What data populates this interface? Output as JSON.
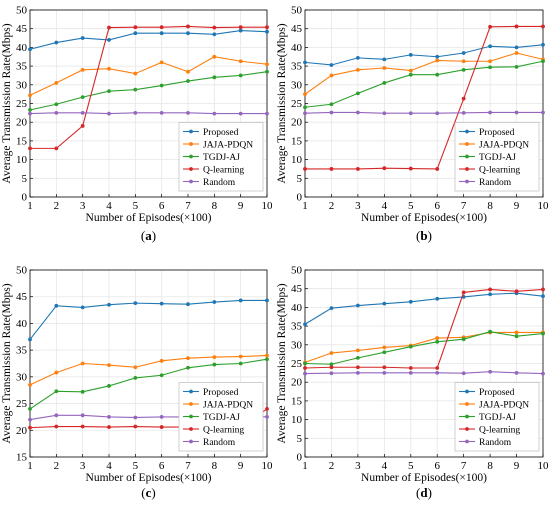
{
  "colors": {
    "Proposed": "#1f77b4",
    "JAJA-PDQN": "#ff7f0e",
    "TGDJ-AJ": "#2ca02c",
    "Q-learning": "#d62728",
    "Random": "#9467bd"
  },
  "chart_data": [
    {
      "type": "line",
      "panel_label": "(a)",
      "xlabel": "Number of Episodes(×100)",
      "ylabel": "Average Transmission Rate(Mbps)",
      "x": [
        1,
        2,
        3,
        4,
        5,
        6,
        7,
        8,
        9,
        10
      ],
      "xlim": [
        1,
        10
      ],
      "ylim": [
        0,
        50
      ],
      "xticks": [
        1,
        2,
        3,
        4,
        5,
        6,
        7,
        8,
        9,
        10
      ],
      "yticks": [
        0,
        5,
        10,
        15,
        20,
        25,
        30,
        35,
        40,
        45,
        50
      ],
      "grid": true,
      "legend_position": "lower-right",
      "series": [
        {
          "name": "Proposed",
          "values": [
            39.5,
            41.3,
            42.5,
            42.0,
            43.8,
            43.8,
            43.8,
            43.5,
            44.5,
            44.2
          ]
        },
        {
          "name": "JAJA-PDQN",
          "values": [
            27.2,
            30.5,
            34.0,
            34.3,
            33.0,
            36.0,
            33.5,
            37.5,
            36.3,
            35.5
          ]
        },
        {
          "name": "TGDJ-AJ",
          "values": [
            23.3,
            24.8,
            26.7,
            28.3,
            28.7,
            29.8,
            31.0,
            32.0,
            32.5,
            33.5
          ]
        },
        {
          "name": "Q-learning",
          "values": [
            13.0,
            13.0,
            19.0,
            45.3,
            45.4,
            45.4,
            45.6,
            45.3,
            45.4,
            45.4
          ]
        },
        {
          "name": "Random",
          "values": [
            22.3,
            22.5,
            22.5,
            22.3,
            22.5,
            22.5,
            22.5,
            22.3,
            22.3,
            22.3
          ]
        }
      ]
    },
    {
      "type": "line",
      "panel_label": "(b)",
      "xlabel": "Number of Episodes(×100)",
      "ylabel": "Average Transmission Rate(Mbps)",
      "x": [
        1,
        2,
        3,
        4,
        5,
        6,
        7,
        8,
        9,
        10
      ],
      "xlim": [
        1,
        10
      ],
      "ylim": [
        0,
        50
      ],
      "xticks": [
        1,
        2,
        3,
        4,
        5,
        6,
        7,
        8,
        9,
        10
      ],
      "yticks": [
        0,
        5,
        10,
        15,
        20,
        25,
        30,
        35,
        40,
        45,
        50
      ],
      "grid": true,
      "legend_position": "lower-right",
      "series": [
        {
          "name": "Proposed",
          "values": [
            36.0,
            35.3,
            37.2,
            36.8,
            38.0,
            37.5,
            38.5,
            40.3,
            40.0,
            40.7
          ]
        },
        {
          "name": "JAJA-PDQN",
          "values": [
            27.5,
            32.5,
            34.0,
            34.5,
            33.8,
            36.5,
            36.3,
            36.3,
            38.5,
            36.8
          ]
        },
        {
          "name": "TGDJ-AJ",
          "values": [
            24.0,
            24.8,
            27.7,
            30.5,
            32.7,
            32.7,
            34.0,
            34.7,
            34.8,
            36.3
          ]
        },
        {
          "name": "Q-learning",
          "values": [
            7.5,
            7.5,
            7.5,
            7.7,
            7.6,
            7.5,
            26.3,
            45.5,
            45.6,
            45.6
          ]
        },
        {
          "name": "Random",
          "values": [
            22.4,
            22.6,
            22.6,
            22.4,
            22.4,
            22.4,
            22.5,
            22.6,
            22.6,
            22.6
          ]
        }
      ]
    },
    {
      "type": "line",
      "panel_label": "(c)",
      "xlabel": "Number of Episodes(×100)",
      "ylabel": "Average Transmission Rate(Mbps)",
      "x": [
        1,
        2,
        3,
        4,
        5,
        6,
        7,
        8,
        9,
        10
      ],
      "xlim": [
        1,
        10
      ],
      "ylim": [
        15,
        50
      ],
      "xticks": [
        1,
        2,
        3,
        4,
        5,
        6,
        7,
        8,
        9,
        10
      ],
      "yticks": [
        15,
        20,
        25,
        30,
        35,
        40,
        45,
        50
      ],
      "grid": true,
      "legend_position": "lower-right",
      "series": [
        {
          "name": "Proposed",
          "values": [
            37.0,
            43.3,
            43.0,
            43.5,
            43.8,
            43.7,
            43.6,
            44.0,
            44.3,
            44.3
          ]
        },
        {
          "name": "JAJA-PDQN",
          "values": [
            28.5,
            30.8,
            32.5,
            32.2,
            31.8,
            33.0,
            33.5,
            33.7,
            33.8,
            34.0
          ]
        },
        {
          "name": "TGDJ-AJ",
          "values": [
            24.0,
            27.3,
            27.2,
            28.3,
            29.8,
            30.3,
            31.7,
            32.3,
            32.5,
            33.3
          ]
        },
        {
          "name": "Q-learning",
          "values": [
            20.5,
            20.7,
            20.7,
            20.6,
            20.7,
            20.6,
            20.6,
            20.6,
            20.7,
            24.0
          ]
        },
        {
          "name": "Random",
          "values": [
            22.0,
            22.8,
            22.8,
            22.5,
            22.4,
            22.5,
            22.5,
            22.5,
            22.8,
            22.5
          ]
        }
      ]
    },
    {
      "type": "line",
      "panel_label": "(d)",
      "xlabel": "Number of Episodes(×100)",
      "ylabel": "Average Transmission Rate(Mbps)",
      "x": [
        1,
        2,
        3,
        4,
        5,
        6,
        7,
        8,
        9,
        10
      ],
      "xlim": [
        1,
        10
      ],
      "ylim": [
        0,
        50
      ],
      "xticks": [
        1,
        2,
        3,
        4,
        5,
        6,
        7,
        8,
        9,
        10
      ],
      "yticks": [
        0,
        5,
        10,
        15,
        20,
        25,
        30,
        35,
        40,
        45,
        50
      ],
      "grid": true,
      "legend_position": "lower-right",
      "series": [
        {
          "name": "Proposed",
          "values": [
            35.5,
            39.8,
            40.5,
            41.0,
            41.5,
            42.3,
            42.8,
            43.5,
            43.8,
            43.0
          ]
        },
        {
          "name": "JAJA-PDQN",
          "values": [
            25.3,
            27.8,
            28.5,
            29.3,
            29.8,
            31.8,
            32.0,
            33.3,
            33.3,
            33.3
          ]
        },
        {
          "name": "TGDJ-AJ",
          "values": [
            25.0,
            24.8,
            26.5,
            28.0,
            29.5,
            30.8,
            31.5,
            33.5,
            32.3,
            33.0
          ]
        },
        {
          "name": "Q-learning",
          "values": [
            23.8,
            24.0,
            24.0,
            24.0,
            23.8,
            23.8,
            44.0,
            44.8,
            44.3,
            44.8
          ]
        },
        {
          "name": "Random",
          "values": [
            22.3,
            22.4,
            22.5,
            22.5,
            22.5,
            22.5,
            22.4,
            22.8,
            22.5,
            22.3
          ]
        }
      ]
    }
  ]
}
